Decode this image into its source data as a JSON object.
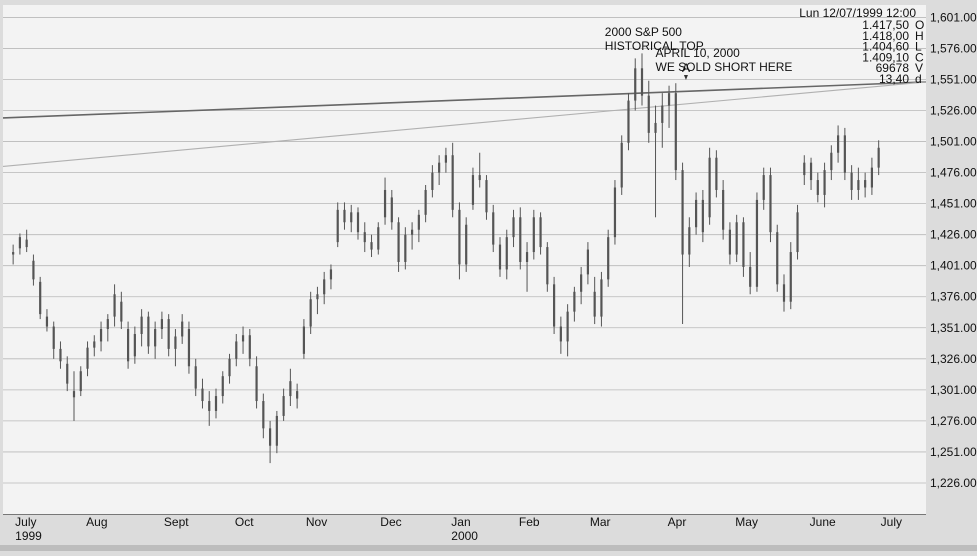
{
  "chart_data": {
    "type": "candlestick",
    "title": "",
    "xlabel": "",
    "ylabel": "",
    "ylim": [
      1201,
      1611
    ],
    "y_ticks": [
      1226,
      1251,
      1276,
      1301,
      1326,
      1351,
      1376,
      1401,
      1426,
      1451,
      1476,
      1501,
      1526,
      1551,
      1576,
      1601
    ],
    "y_tick_labels": [
      "1,226.00",
      "1,251.00",
      "1,276.00",
      "1,301.00",
      "1,326.00",
      "1,351.00",
      "1,376.00",
      "1,401.00",
      "1,426.00",
      "1,451.00",
      "1,476.00",
      "1,501.00",
      "1,526.00",
      "1,551.00",
      "1,576.00",
      "1,601.00"
    ],
    "grid": "horizontal",
    "x_labels": [
      {
        "label": "July",
        "sub": "1999",
        "t": 0
      },
      {
        "label": "Aug",
        "sub": "",
        "t": 21
      },
      {
        "label": "Sept",
        "sub": "",
        "t": 44
      },
      {
        "label": "Oct",
        "sub": "",
        "t": 65
      },
      {
        "label": "Nov",
        "sub": "",
        "t": 86
      },
      {
        "label": "Dec",
        "sub": "",
        "t": 108
      },
      {
        "label": "Jan",
        "sub": "2000",
        "t": 129
      },
      {
        "label": "Feb",
        "sub": "",
        "t": 149
      },
      {
        "label": "Mar",
        "sub": "",
        "t": 170
      },
      {
        "label": "Apr",
        "sub": "",
        "t": 193
      },
      {
        "label": "May",
        "sub": "",
        "t": 213
      },
      {
        "label": "June",
        "sub": "",
        "t": 235
      },
      {
        "label": "July",
        "sub": "",
        "t": 256
      }
    ],
    "series": [
      {
        "t": 0,
        "o": 1410,
        "h": 1418,
        "l": 1402,
        "c": 1412
      },
      {
        "t": 2,
        "o": 1415,
        "h": 1427,
        "l": 1410,
        "c": 1424
      },
      {
        "t": 4,
        "o": 1422,
        "h": 1430,
        "l": 1412,
        "c": 1416
      },
      {
        "t": 6,
        "o": 1405,
        "h": 1410,
        "l": 1385,
        "c": 1390
      },
      {
        "t": 8,
        "o": 1388,
        "h": 1392,
        "l": 1358,
        "c": 1362
      },
      {
        "t": 10,
        "o": 1360,
        "h": 1366,
        "l": 1348,
        "c": 1352
      },
      {
        "t": 12,
        "o": 1352,
        "h": 1356,
        "l": 1326,
        "c": 1334
      },
      {
        "t": 14,
        "o": 1334,
        "h": 1340,
        "l": 1318,
        "c": 1324
      },
      {
        "t": 16,
        "o": 1322,
        "h": 1328,
        "l": 1300,
        "c": 1306
      },
      {
        "t": 18,
        "o": 1300,
        "h": 1316,
        "l": 1276,
        "c": 1295
      },
      {
        "t": 20,
        "o": 1300,
        "h": 1320,
        "l": 1296,
        "c": 1316
      },
      {
        "t": 22,
        "o": 1318,
        "h": 1340,
        "l": 1312,
        "c": 1335
      },
      {
        "t": 24,
        "o": 1335,
        "h": 1345,
        "l": 1328,
        "c": 1340
      },
      {
        "t": 26,
        "o": 1340,
        "h": 1356,
        "l": 1332,
        "c": 1350
      },
      {
        "t": 28,
        "o": 1350,
        "h": 1362,
        "l": 1340,
        "c": 1358
      },
      {
        "t": 30,
        "o": 1360,
        "h": 1386,
        "l": 1352,
        "c": 1378
      },
      {
        "t": 32,
        "o": 1372,
        "h": 1380,
        "l": 1350,
        "c": 1356
      },
      {
        "t": 34,
        "o": 1350,
        "h": 1356,
        "l": 1318,
        "c": 1324
      },
      {
        "t": 36,
        "o": 1328,
        "h": 1352,
        "l": 1322,
        "c": 1346
      },
      {
        "t": 38,
        "o": 1346,
        "h": 1366,
        "l": 1336,
        "c": 1360
      },
      {
        "t": 40,
        "o": 1360,
        "h": 1364,
        "l": 1330,
        "c": 1336
      },
      {
        "t": 42,
        "o": 1336,
        "h": 1356,
        "l": 1326,
        "c": 1350
      },
      {
        "t": 44,
        "o": 1350,
        "h": 1364,
        "l": 1342,
        "c": 1358
      },
      {
        "t": 46,
        "o": 1358,
        "h": 1362,
        "l": 1328,
        "c": 1334
      },
      {
        "t": 48,
        "o": 1334,
        "h": 1350,
        "l": 1320,
        "c": 1344
      },
      {
        "t": 50,
        "o": 1344,
        "h": 1362,
        "l": 1338,
        "c": 1356
      },
      {
        "t": 52,
        "o": 1350,
        "h": 1356,
        "l": 1314,
        "c": 1320
      },
      {
        "t": 54,
        "o": 1320,
        "h": 1326,
        "l": 1296,
        "c": 1302
      },
      {
        "t": 56,
        "o": 1302,
        "h": 1310,
        "l": 1286,
        "c": 1292
      },
      {
        "t": 58,
        "o": 1292,
        "h": 1300,
        "l": 1272,
        "c": 1284
      },
      {
        "t": 60,
        "o": 1284,
        "h": 1302,
        "l": 1278,
        "c": 1296
      },
      {
        "t": 62,
        "o": 1296,
        "h": 1316,
        "l": 1290,
        "c": 1312
      },
      {
        "t": 64,
        "o": 1312,
        "h": 1330,
        "l": 1306,
        "c": 1326
      },
      {
        "t": 66,
        "o": 1326,
        "h": 1346,
        "l": 1320,
        "c": 1340
      },
      {
        "t": 68,
        "o": 1340,
        "h": 1352,
        "l": 1330,
        "c": 1345
      },
      {
        "t": 70,
        "o": 1345,
        "h": 1350,
        "l": 1320,
        "c": 1326
      },
      {
        "t": 72,
        "o": 1320,
        "h": 1328,
        "l": 1286,
        "c": 1292
      },
      {
        "t": 74,
        "o": 1292,
        "h": 1298,
        "l": 1262,
        "c": 1270
      },
      {
        "t": 76,
        "o": 1270,
        "h": 1276,
        "l": 1242,
        "c": 1256
      },
      {
        "t": 78,
        "o": 1256,
        "h": 1284,
        "l": 1250,
        "c": 1280
      },
      {
        "t": 80,
        "o": 1280,
        "h": 1302,
        "l": 1276,
        "c": 1296
      },
      {
        "t": 82,
        "o": 1296,
        "h": 1318,
        "l": 1288,
        "c": 1308
      },
      {
        "t": 84,
        "o": 1294,
        "h": 1306,
        "l": 1286,
        "c": 1300
      },
      {
        "t": 86,
        "o": 1330,
        "h": 1358,
        "l": 1326,
        "c": 1352
      },
      {
        "t": 88,
        "o": 1352,
        "h": 1380,
        "l": 1346,
        "c": 1374
      },
      {
        "t": 90,
        "o": 1374,
        "h": 1384,
        "l": 1362,
        "c": 1378
      },
      {
        "t": 92,
        "o": 1378,
        "h": 1396,
        "l": 1370,
        "c": 1390
      },
      {
        "t": 94,
        "o": 1390,
        "h": 1402,
        "l": 1382,
        "c": 1398
      },
      {
        "t": 96,
        "o": 1420,
        "h": 1452,
        "l": 1416,
        "c": 1446
      },
      {
        "t": 98,
        "o": 1446,
        "h": 1452,
        "l": 1430,
        "c": 1436
      },
      {
        "t": 100,
        "o": 1436,
        "h": 1450,
        "l": 1428,
        "c": 1444
      },
      {
        "t": 102,
        "o": 1444,
        "h": 1448,
        "l": 1422,
        "c": 1428
      },
      {
        "t": 104,
        "o": 1428,
        "h": 1436,
        "l": 1412,
        "c": 1420
      },
      {
        "t": 106,
        "o": 1420,
        "h": 1426,
        "l": 1408,
        "c": 1414
      },
      {
        "t": 108,
        "o": 1414,
        "h": 1436,
        "l": 1410,
        "c": 1432
      },
      {
        "t": 110,
        "o": 1440,
        "h": 1472,
        "l": 1434,
        "c": 1462
      },
      {
        "t": 112,
        "o": 1456,
        "h": 1462,
        "l": 1430,
        "c": 1436
      },
      {
        "t": 114,
        "o": 1436,
        "h": 1440,
        "l": 1396,
        "c": 1404
      },
      {
        "t": 116,
        "o": 1404,
        "h": 1432,
        "l": 1398,
        "c": 1426
      },
      {
        "t": 118,
        "o": 1426,
        "h": 1436,
        "l": 1414,
        "c": 1430
      },
      {
        "t": 120,
        "o": 1430,
        "h": 1446,
        "l": 1420,
        "c": 1442
      },
      {
        "t": 122,
        "o": 1442,
        "h": 1466,
        "l": 1436,
        "c": 1462
      },
      {
        "t": 124,
        "o": 1462,
        "h": 1482,
        "l": 1456,
        "c": 1476
      },
      {
        "t": 126,
        "o": 1476,
        "h": 1490,
        "l": 1466,
        "c": 1484
      },
      {
        "t": 128,
        "o": 1484,
        "h": 1496,
        "l": 1476,
        "c": 1490
      },
      {
        "t": 130,
        "o": 1490,
        "h": 1500,
        "l": 1440,
        "c": 1446
      },
      {
        "t": 132,
        "o": 1446,
        "h": 1452,
        "l": 1390,
        "c": 1402
      },
      {
        "t": 134,
        "o": 1402,
        "h": 1440,
        "l": 1396,
        "c": 1434
      },
      {
        "t": 136,
        "o": 1450,
        "h": 1480,
        "l": 1446,
        "c": 1474
      },
      {
        "t": 138,
        "o": 1474,
        "h": 1492,
        "l": 1464,
        "c": 1470
      },
      {
        "t": 140,
        "o": 1470,
        "h": 1474,
        "l": 1438,
        "c": 1444
      },
      {
        "t": 142,
        "o": 1444,
        "h": 1450,
        "l": 1412,
        "c": 1418
      },
      {
        "t": 144,
        "o": 1418,
        "h": 1424,
        "l": 1392,
        "c": 1398
      },
      {
        "t": 146,
        "o": 1398,
        "h": 1430,
        "l": 1390,
        "c": 1424
      },
      {
        "t": 148,
        "o": 1424,
        "h": 1446,
        "l": 1416,
        "c": 1440
      },
      {
        "t": 150,
        "o": 1440,
        "h": 1448,
        "l": 1398,
        "c": 1404
      },
      {
        "t": 152,
        "o": 1404,
        "h": 1420,
        "l": 1380,
        "c": 1412
      },
      {
        "t": 154,
        "o": 1412,
        "h": 1446,
        "l": 1406,
        "c": 1440
      },
      {
        "t": 156,
        "o": 1440,
        "h": 1444,
        "l": 1410,
        "c": 1416
      },
      {
        "t": 158,
        "o": 1416,
        "h": 1420,
        "l": 1380,
        "c": 1386
      },
      {
        "t": 160,
        "o": 1386,
        "h": 1392,
        "l": 1346,
        "c": 1352
      },
      {
        "t": 162,
        "o": 1352,
        "h": 1360,
        "l": 1330,
        "c": 1340
      },
      {
        "t": 164,
        "o": 1340,
        "h": 1370,
        "l": 1328,
        "c": 1364
      },
      {
        "t": 166,
        "o": 1364,
        "h": 1384,
        "l": 1356,
        "c": 1380
      },
      {
        "t": 168,
        "o": 1380,
        "h": 1400,
        "l": 1370,
        "c": 1394
      },
      {
        "t": 170,
        "o": 1394,
        "h": 1420,
        "l": 1386,
        "c": 1414
      },
      {
        "t": 172,
        "o": 1380,
        "h": 1392,
        "l": 1354,
        "c": 1360
      },
      {
        "t": 174,
        "o": 1360,
        "h": 1396,
        "l": 1352,
        "c": 1390
      },
      {
        "t": 176,
        "o": 1390,
        "h": 1430,
        "l": 1384,
        "c": 1424
      },
      {
        "t": 178,
        "o": 1424,
        "h": 1470,
        "l": 1418,
        "c": 1464
      },
      {
        "t": 180,
        "o": 1464,
        "h": 1506,
        "l": 1458,
        "c": 1500
      },
      {
        "t": 182,
        "o": 1500,
        "h": 1540,
        "l": 1494,
        "c": 1534
      },
      {
        "t": 184,
        "o": 1534,
        "h": 1568,
        "l": 1526,
        "c": 1560
      },
      {
        "t": 186,
        "o": 1560,
        "h": 1572,
        "l": 1530,
        "c": 1538
      },
      {
        "t": 188,
        "o": 1538,
        "h": 1550,
        "l": 1500,
        "c": 1508
      },
      {
        "t": 190,
        "o": 1508,
        "h": 1530,
        "l": 1440,
        "c": 1516
      },
      {
        "t": 192,
        "o": 1516,
        "h": 1540,
        "l": 1496,
        "c": 1530
      },
      {
        "t": 194,
        "o": 1530,
        "h": 1546,
        "l": 1512,
        "c": 1540
      },
      {
        "t": 196,
        "o": 1540,
        "h": 1548,
        "l": 1470,
        "c": 1478
      },
      {
        "t": 198,
        "o": 1478,
        "h": 1484,
        "l": 1354,
        "c": 1410
      },
      {
        "t": 200,
        "o": 1410,
        "h": 1440,
        "l": 1400,
        "c": 1432
      },
      {
        "t": 202,
        "o": 1432,
        "h": 1460,
        "l": 1426,
        "c": 1454
      },
      {
        "t": 204,
        "o": 1454,
        "h": 1462,
        "l": 1420,
        "c": 1428
      },
      {
        "t": 206,
        "o": 1440,
        "h": 1496,
        "l": 1434,
        "c": 1488
      },
      {
        "t": 208,
        "o": 1488,
        "h": 1494,
        "l": 1456,
        "c": 1462
      },
      {
        "t": 210,
        "o": 1462,
        "h": 1470,
        "l": 1422,
        "c": 1430
      },
      {
        "t": 212,
        "o": 1430,
        "h": 1436,
        "l": 1402,
        "c": 1410
      },
      {
        "t": 214,
        "o": 1410,
        "h": 1442,
        "l": 1404,
        "c": 1436
      },
      {
        "t": 216,
        "o": 1436,
        "h": 1440,
        "l": 1392,
        "c": 1400
      },
      {
        "t": 218,
        "o": 1400,
        "h": 1412,
        "l": 1378,
        "c": 1384
      },
      {
        "t": 220,
        "o": 1384,
        "h": 1460,
        "l": 1380,
        "c": 1454
      },
      {
        "t": 222,
        "o": 1454,
        "h": 1480,
        "l": 1446,
        "c": 1474
      },
      {
        "t": 224,
        "o": 1474,
        "h": 1480,
        "l": 1420,
        "c": 1428
      },
      {
        "t": 226,
        "o": 1428,
        "h": 1434,
        "l": 1380,
        "c": 1386
      },
      {
        "t": 228,
        "o": 1386,
        "h": 1394,
        "l": 1364,
        "c": 1372
      },
      {
        "t": 230,
        "o": 1372,
        "h": 1420,
        "l": 1366,
        "c": 1412
      },
      {
        "t": 232,
        "o": 1412,
        "h": 1450,
        "l": 1406,
        "c": 1444
      },
      {
        "t": 234,
        "o": 1474,
        "h": 1490,
        "l": 1466,
        "c": 1484
      },
      {
        "t": 236,
        "o": 1484,
        "h": 1488,
        "l": 1462,
        "c": 1470
      },
      {
        "t": 238,
        "o": 1470,
        "h": 1476,
        "l": 1452,
        "c": 1458
      },
      {
        "t": 240,
        "o": 1458,
        "h": 1484,
        "l": 1448,
        "c": 1478
      },
      {
        "t": 242,
        "o": 1478,
        "h": 1498,
        "l": 1470,
        "c": 1492
      },
      {
        "t": 244,
        "o": 1492,
        "h": 1514,
        "l": 1484,
        "c": 1506
      },
      {
        "t": 246,
        "o": 1506,
        "h": 1512,
        "l": 1470,
        "c": 1476
      },
      {
        "t": 248,
        "o": 1476,
        "h": 1482,
        "l": 1454,
        "c": 1462
      },
      {
        "t": 250,
        "o": 1462,
        "h": 1480,
        "l": 1454,
        "c": 1470
      },
      {
        "t": 252,
        "o": 1470,
        "h": 1476,
        "l": 1456,
        "c": 1464
      },
      {
        "t": 254,
        "o": 1464,
        "h": 1488,
        "l": 1458,
        "c": 1480
      },
      {
        "t": 256,
        "o": 1480,
        "h": 1502,
        "l": 1474,
        "c": 1496
      }
    ],
    "trendlines": [
      {
        "x0": -3,
        "y0": 1520,
        "x1": 270,
        "y1": 1549,
        "color": "#666666",
        "width": 1.6
      },
      {
        "x0": -3,
        "y0": 1481,
        "x1": 270,
        "y1": 1549,
        "color": "#b0b0b0",
        "width": 1.1
      }
    ],
    "annotations": [
      {
        "lines": [
          "2000 S&P 500",
          "HISTORICAL TOP"
        ],
        "t": 175,
        "y": 1586
      },
      {
        "lines": [
          "APRIL 10, 2000",
          "WE SOLD SHORT HERE"
        ],
        "t": 190,
        "y": 1569
      },
      {
        "lines": [
          "A"
        ],
        "t": 199,
        "y": 1557,
        "marker": true
      }
    ],
    "info_panel": {
      "date": "Lun 12/07/1999 12:00",
      "rows": [
        {
          "value": "1.417,50",
          "key": "O"
        },
        {
          "value": "1.418,00",
          "key": "H"
        },
        {
          "value": "1.404,60",
          "key": "L"
        },
        {
          "value": "1.409,10",
          "key": "C"
        },
        {
          "value": "69678",
          "key": "V"
        },
        {
          "value": "13,40",
          "key": "d"
        }
      ]
    },
    "colors": {
      "candle": "#555555",
      "grid": "#b8b8b8",
      "bg": "#f3f3f3",
      "trend": "#666666"
    }
  }
}
